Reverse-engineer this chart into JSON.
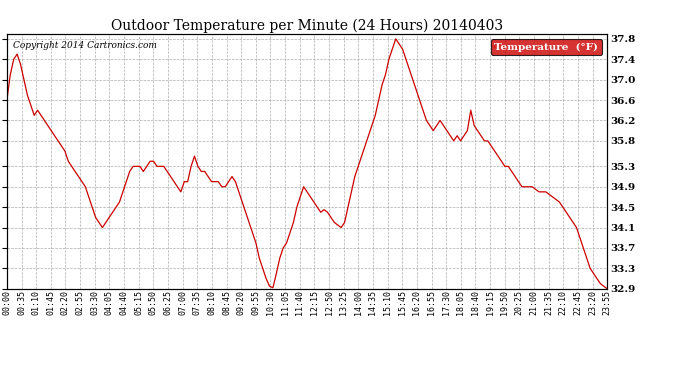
{
  "title": "Outdoor Temperature per Minute (24 Hours) 20140403",
  "copyright_text": "Copyright 2014 Cartronics.com",
  "legend_label": "Temperature  (°F)",
  "legend_bg": "#cc0000",
  "legend_text_color": "#ffffff",
  "line_color": "#cc0000",
  "bg_color": "#ffffff",
  "grid_color": "#999999",
  "ylim": [
    32.9,
    37.9
  ],
  "yticks": [
    32.9,
    33.3,
    33.7,
    34.1,
    34.5,
    34.9,
    35.3,
    35.8,
    36.2,
    36.6,
    37.0,
    37.4,
    37.8
  ],
  "xtick_labels": [
    "00:00",
    "00:35",
    "01:10",
    "01:45",
    "02:20",
    "02:55",
    "03:30",
    "04:05",
    "04:40",
    "05:15",
    "05:50",
    "06:25",
    "07:00",
    "07:35",
    "08:10",
    "08:45",
    "09:20",
    "09:55",
    "10:30",
    "11:05",
    "11:40",
    "12:15",
    "12:50",
    "13:25",
    "14:00",
    "14:35",
    "15:10",
    "15:45",
    "16:20",
    "16:55",
    "17:30",
    "18:05",
    "18:40",
    "19:15",
    "19:50",
    "20:25",
    "21:00",
    "21:35",
    "22:10",
    "22:45",
    "23:20",
    "23:55"
  ],
  "temperature_data": [
    36.6,
    37.1,
    37.4,
    37.5,
    37.3,
    37.0,
    36.7,
    36.5,
    36.3,
    36.4,
    36.3,
    36.2,
    36.1,
    36.0,
    35.9,
    35.8,
    35.7,
    35.6,
    35.4,
    35.3,
    35.2,
    35.1,
    35.0,
    34.9,
    34.7,
    34.5,
    34.3,
    34.2,
    34.1,
    34.2,
    34.3,
    34.4,
    34.5,
    34.6,
    34.8,
    35.0,
    35.2,
    35.3,
    35.3,
    35.3,
    35.2,
    35.3,
    35.4,
    35.4,
    35.3,
    35.3,
    35.3,
    35.2,
    35.1,
    35.0,
    34.9,
    34.8,
    35.0,
    35.0,
    35.3,
    35.5,
    35.3,
    35.2,
    35.2,
    35.1,
    35.0,
    35.0,
    35.0,
    34.9,
    34.9,
    35.0,
    35.1,
    35.0,
    34.8,
    34.6,
    34.4,
    34.2,
    34.0,
    33.8,
    33.5,
    33.3,
    33.1,
    32.95,
    32.92,
    33.2,
    33.5,
    33.7,
    33.8,
    34.0,
    34.2,
    34.5,
    34.7,
    34.9,
    34.8,
    34.7,
    34.6,
    34.5,
    34.4,
    34.45,
    34.4,
    34.3,
    34.2,
    34.15,
    34.1,
    34.2,
    34.5,
    34.8,
    35.1,
    35.3,
    35.5,
    35.7,
    35.9,
    36.1,
    36.3,
    36.6,
    36.9,
    37.1,
    37.4,
    37.6,
    37.8,
    37.7,
    37.6,
    37.4,
    37.2,
    37.0,
    36.8,
    36.6,
    36.4,
    36.2,
    36.1,
    36.0,
    36.1,
    36.2,
    36.1,
    36.0,
    35.9,
    35.8,
    35.9,
    35.8,
    35.9,
    36.0,
    36.4,
    36.1,
    36.0,
    35.9,
    35.8,
    35.8,
    35.7,
    35.6,
    35.5,
    35.4,
    35.3,
    35.3,
    35.2,
    35.1,
    35.0,
    34.9,
    34.9,
    34.9,
    34.9,
    34.85,
    34.8,
    34.8,
    34.8,
    34.75,
    34.7,
    34.65,
    34.6,
    34.5,
    34.4,
    34.3,
    34.2,
    34.1,
    33.9,
    33.7,
    33.5,
    33.3,
    33.2,
    33.1,
    33.0,
    32.95,
    32.9
  ]
}
